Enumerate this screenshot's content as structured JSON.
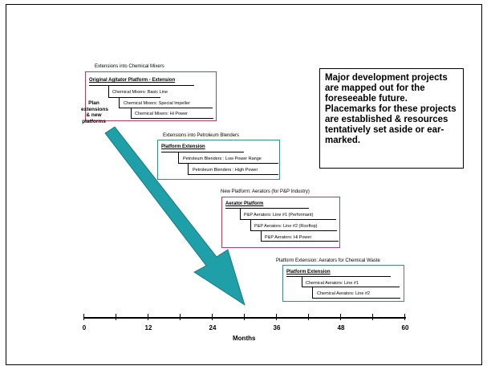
{
  "callout": "Major development projects are mapped out for the foreseeable future. Placemarks for these projects are established & resources tentatively set aside or ear-marked.",
  "plan_note": [
    "Plan",
    "extensions",
    "& new",
    "platforms"
  ],
  "colors": {
    "mixers_border": "#b04060",
    "petro_border": "#3a8a8a",
    "aerators_border": "#b04060",
    "chem_waste_border": "#3a8a8a",
    "arrow": "#1fa0a8"
  },
  "groups": {
    "mixers": {
      "title": "Extensions into Chemical Mixers",
      "main": "Original Agitator Platform - Extension",
      "items": [
        "Chemical Mixers: Basic Line",
        "Chemical Mixers: Special Impeller",
        "Chemical Mixers: Hi Power"
      ]
    },
    "petro": {
      "title": "Extensions into Petroleum Blenders",
      "main": "Platform Extension",
      "items": [
        "Petroleum Blenders : Low Power Range",
        "Petroleum Blenders : High Power"
      ]
    },
    "aerators": {
      "title": "New Platform: Aerators (for P&P Industry)",
      "main": "Aerator Platform",
      "items": [
        "P&P Aerators: Line #1 (Performant)",
        "P&P Aerators: Line #2 (Rooftop)",
        "P&P Aerators: Hi Power"
      ]
    },
    "chem_waste": {
      "title": "Platform Extension: Aerators for Chemical Waste",
      "main": "Platform Extension",
      "items": [
        "Chemical Aerators: Line #1",
        "Chemical Aerators: Line #2"
      ]
    }
  },
  "axis": {
    "title": "Months",
    "ticks": [
      "0",
      "12",
      "24",
      "36",
      "48",
      "60"
    ]
  }
}
